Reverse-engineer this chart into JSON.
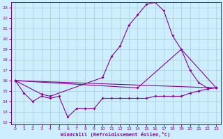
{
  "xlabel": "Windchill (Refroidissement éolien,°C)",
  "bg_color": "#cceeff",
  "grid_color": "#aacccc",
  "line_color": "#880099",
  "xlim": [
    -0.5,
    23.5
  ],
  "ylim": [
    11.8,
    23.5
  ],
  "yticks": [
    12,
    13,
    14,
    15,
    16,
    17,
    18,
    19,
    20,
    21,
    22,
    23
  ],
  "xticks": [
    0,
    1,
    2,
    3,
    4,
    5,
    6,
    7,
    8,
    9,
    10,
    11,
    12,
    13,
    14,
    15,
    16,
    17,
    18,
    19,
    20,
    21,
    22,
    23
  ],
  "line1_x": [
    0,
    1,
    2,
    3,
    4,
    5,
    6,
    7,
    8,
    9,
    10,
    11,
    12,
    13,
    14,
    15,
    16,
    17,
    18,
    19,
    20,
    21,
    22,
    23
  ],
  "line1_y": [
    16.0,
    14.8,
    14.0,
    14.5,
    14.3,
    14.5,
    12.5,
    13.3,
    13.3,
    13.3,
    14.3,
    14.3,
    14.3,
    14.3,
    14.3,
    14.3,
    14.5,
    14.5,
    14.5,
    14.5,
    14.8,
    15.0,
    15.2,
    15.3
  ],
  "line2_x": [
    0,
    3,
    4,
    10,
    11,
    12,
    13,
    14,
    15,
    16,
    17,
    18,
    19,
    20,
    21,
    22,
    23
  ],
  "line2_y": [
    16.0,
    14.7,
    14.5,
    16.3,
    18.3,
    19.3,
    21.3,
    22.3,
    23.3,
    23.5,
    22.7,
    20.3,
    19.0,
    17.0,
    15.8,
    15.3,
    15.3
  ],
  "line3_x": [
    0,
    23
  ],
  "line3_y": [
    16.0,
    15.3
  ],
  "line4_x": [
    0,
    14,
    19,
    23
  ],
  "line4_y": [
    16.0,
    15.3,
    19.0,
    15.3
  ]
}
